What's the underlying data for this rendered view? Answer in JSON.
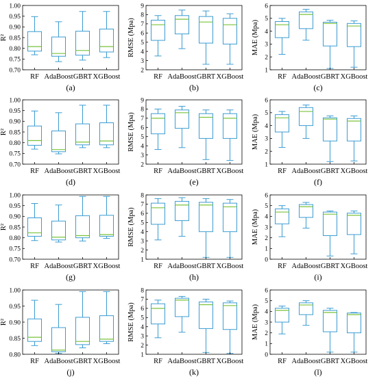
{
  "colors": {
    "box": "#3a9bd1",
    "median": "#79c23a",
    "axis": "#000000"
  },
  "chart_data": [
    {
      "type": "box",
      "panel": "(a)",
      "ylabel": "R²",
      "ylim": [
        0.7,
        1.0
      ],
      "yticks": [
        "0.70",
        "0.75",
        "0.80",
        "0.85",
        "0.90",
        "0.95",
        "1.00"
      ],
      "categories": [
        "RF",
        "AdaBoost",
        "GBRT",
        "XGBoost"
      ],
      "boxes": [
        {
          "min": 0.77,
          "q1": 0.787,
          "median": 0.808,
          "q3": 0.878,
          "max": 0.948
        },
        {
          "min": 0.738,
          "q1": 0.763,
          "median": 0.776,
          "q3": 0.853,
          "max": 0.924
        },
        {
          "min": 0.745,
          "q1": 0.768,
          "median": 0.79,
          "q3": 0.88,
          "max": 0.972
        },
        {
          "min": 0.757,
          "q1": 0.783,
          "median": 0.808,
          "q3": 0.89,
          "max": 0.972
        }
      ]
    },
    {
      "type": "box",
      "panel": "(b)",
      "ylabel": "RMSE (Mpa)",
      "ylim": [
        2,
        9
      ],
      "yticks": [
        "2",
        "3",
        "4",
        "5",
        "6",
        "7",
        "8",
        "9"
      ],
      "categories": [
        "RF",
        "AdaBoost",
        "GBRT",
        "XGBoost"
      ],
      "boxes": [
        {
          "min": 3.5,
          "q1": 5.2,
          "median": 6.9,
          "q3": 7.4,
          "max": 7.9
        },
        {
          "min": 4.3,
          "q1": 5.9,
          "median": 7.5,
          "q3": 7.9,
          "max": 8.5
        },
        {
          "min": 2.6,
          "q1": 4.9,
          "median": 7.2,
          "q3": 7.8,
          "max": 8.4
        },
        {
          "min": 2.6,
          "q1": 4.8,
          "median": 6.9,
          "q3": 7.6,
          "max": 8.1
        }
      ]
    },
    {
      "type": "box",
      "panel": "(c)",
      "ylabel": "MAE (Mpa)",
      "ylim": [
        1,
        6
      ],
      "yticks": [
        "1",
        "2",
        "3",
        "4",
        "5",
        "6"
      ],
      "categories": [
        "RF",
        "AdaBoost",
        "GBRT",
        "XGBoost"
      ],
      "boxes": [
        {
          "min": 2.2,
          "q1": 3.5,
          "median": 4.5,
          "q3": 4.75,
          "max": 5.0
        },
        {
          "min": 3.3,
          "q1": 4.2,
          "median": 5.3,
          "q3": 5.5,
          "max": 5.7
        },
        {
          "min": 1.1,
          "q1": 2.85,
          "median": 4.6,
          "q3": 4.7,
          "max": 4.85
        },
        {
          "min": 1.2,
          "q1": 2.8,
          "median": 4.4,
          "q3": 4.6,
          "max": 4.8
        }
      ]
    },
    {
      "type": "box",
      "panel": "(d)",
      "ylabel": "R²",
      "ylim": [
        0.7,
        1.0
      ],
      "yticks": [
        "0.70",
        "0.75",
        "0.80",
        "0.85",
        "0.90",
        "0.95",
        "1.00"
      ],
      "categories": [
        "RF",
        "AdaBoost",
        "GBRT",
        "XGBoost"
      ],
      "boxes": [
        {
          "min": 0.77,
          "q1": 0.788,
          "median": 0.81,
          "q3": 0.878,
          "max": 0.948
        },
        {
          "min": 0.748,
          "q1": 0.758,
          "median": 0.768,
          "q3": 0.855,
          "max": 0.94
        },
        {
          "min": 0.777,
          "q1": 0.79,
          "median": 0.803,
          "q3": 0.888,
          "max": 0.975
        },
        {
          "min": 0.777,
          "q1": 0.79,
          "median": 0.808,
          "q3": 0.893,
          "max": 0.975
        }
      ]
    },
    {
      "type": "box",
      "panel": "(e)",
      "ylabel": "RMSE (Mpa)",
      "ylim": [
        2,
        9
      ],
      "yticks": [
        "2",
        "3",
        "4",
        "5",
        "6",
        "7",
        "8",
        "9"
      ],
      "categories": [
        "RF",
        "AdaBoost",
        "GBRT",
        "XGBoost"
      ],
      "boxes": [
        {
          "min": 3.6,
          "q1": 5.3,
          "median": 7.0,
          "q3": 7.5,
          "max": 8.0
        },
        {
          "min": 3.8,
          "q1": 5.9,
          "median": 7.6,
          "q3": 7.9,
          "max": 8.3
        },
        {
          "min": 2.5,
          "q1": 4.8,
          "median": 7.1,
          "q3": 7.5,
          "max": 7.9
        },
        {
          "min": 2.4,
          "q1": 4.8,
          "median": 7.0,
          "q3": 7.5,
          "max": 7.9
        }
      ]
    },
    {
      "type": "box",
      "panel": "(f)",
      "ylabel": "MAE (Mpa)",
      "ylim": [
        1,
        6
      ],
      "yticks": [
        "1",
        "2",
        "3",
        "4",
        "5",
        "6"
      ],
      "categories": [
        "RF",
        "AdaBoost",
        "GBRT",
        "XGBoost"
      ],
      "boxes": [
        {
          "min": 2.3,
          "q1": 3.5,
          "median": 4.6,
          "q3": 4.85,
          "max": 5.1
        },
        {
          "min": 3.0,
          "q1": 4.0,
          "median": 5.1,
          "q3": 5.4,
          "max": 5.6
        },
        {
          "min": 1.2,
          "q1": 2.8,
          "median": 4.5,
          "q3": 4.6,
          "max": 4.75
        },
        {
          "min": 1.25,
          "q1": 2.8,
          "median": 4.35,
          "q3": 4.55,
          "max": 4.75
        }
      ]
    },
    {
      "type": "box",
      "panel": "(g)",
      "ylabel": "R²",
      "ylim": [
        0.7,
        1.0
      ],
      "yticks": [
        "0.70",
        "0.75",
        "0.80",
        "0.85",
        "0.90",
        "0.95",
        "1.00"
      ],
      "categories": [
        "RF",
        "AdaBoost",
        "GBRT",
        "XGBoost"
      ],
      "boxes": [
        {
          "min": 0.787,
          "q1": 0.807,
          "median": 0.823,
          "q3": 0.893,
          "max": 0.96
        },
        {
          "min": 0.78,
          "q1": 0.79,
          "median": 0.803,
          "q3": 0.878,
          "max": 0.953
        },
        {
          "min": 0.785,
          "q1": 0.8,
          "median": 0.81,
          "q3": 0.903,
          "max": 0.993
        },
        {
          "min": 0.797,
          "q1": 0.807,
          "median": 0.815,
          "q3": 0.905,
          "max": 0.993
        }
      ]
    },
    {
      "type": "box",
      "panel": "(h)",
      "ylabel": "RMSE (Mpa)",
      "ylim": [
        1,
        8
      ],
      "yticks": [
        "1",
        "2",
        "3",
        "4",
        "5",
        "6",
        "7",
        "8"
      ],
      "categories": [
        "RF",
        "AdaBoost",
        "GBRT",
        "XGBoost"
      ],
      "boxes": [
        {
          "min": 3.1,
          "q1": 4.8,
          "median": 6.6,
          "q3": 7.1,
          "max": 7.6
        },
        {
          "min": 3.5,
          "q1": 5.2,
          "median": 6.9,
          "q3": 7.3,
          "max": 7.7
        },
        {
          "min": 1.2,
          "q1": 4.0,
          "median": 6.9,
          "q3": 7.2,
          "max": 7.6
        },
        {
          "min": 1.2,
          "q1": 4.0,
          "median": 6.7,
          "q3": 7.1,
          "max": 7.5
        }
      ]
    },
    {
      "type": "box",
      "panel": "(i)",
      "ylabel": "MAE (Mpa)",
      "ylim": [
        0,
        6
      ],
      "yticks": [
        "0",
        "1",
        "2",
        "3",
        "4",
        "5",
        "6"
      ],
      "categories": [
        "RF",
        "AdaBoost",
        "GBRT",
        "XGBoost"
      ],
      "boxes": [
        {
          "min": 2.1,
          "q1": 3.3,
          "median": 4.4,
          "q3": 4.7,
          "max": 5.0
        },
        {
          "min": 2.9,
          "q1": 3.9,
          "median": 4.9,
          "q3": 5.1,
          "max": 5.3
        },
        {
          "min": 0.3,
          "q1": 2.2,
          "median": 4.2,
          "q3": 4.4,
          "max": 4.5
        },
        {
          "min": 0.5,
          "q1": 2.3,
          "median": 4.1,
          "q3": 4.3,
          "max": 4.5
        }
      ]
    },
    {
      "type": "box",
      "panel": "(j)",
      "ylabel": "R²",
      "ylim": [
        0.8,
        1.0
      ],
      "yticks": [
        "0.80",
        "0.85",
        "0.90",
        "0.95",
        "1.00"
      ],
      "categories": [
        "RF",
        "AdaBoost",
        "GBRT",
        "XGBoost"
      ],
      "boxes": [
        {
          "min": 0.827,
          "q1": 0.84,
          "median": 0.853,
          "q3": 0.91,
          "max": 0.968
        },
        {
          "min": 0.803,
          "q1": 0.808,
          "median": 0.813,
          "q3": 0.883,
          "max": 0.955
        },
        {
          "min": 0.82,
          "q1": 0.83,
          "median": 0.84,
          "q3": 0.915,
          "max": 0.995
        },
        {
          "min": 0.833,
          "q1": 0.84,
          "median": 0.847,
          "q3": 0.92,
          "max": 0.995
        }
      ]
    },
    {
      "type": "box",
      "panel": "(k)",
      "ylabel": "RMSE (Mpa)",
      "ylim": [
        1,
        8
      ],
      "yticks": [
        "1",
        "2",
        "3",
        "4",
        "5",
        "6",
        "7",
        "8"
      ],
      "categories": [
        "RF",
        "AdaBoost",
        "GBRT",
        "XGBoost"
      ],
      "boxes": [
        {
          "min": 2.8,
          "q1": 4.3,
          "median": 6.0,
          "q3": 6.5,
          "max": 6.9
        },
        {
          "min": 3.4,
          "q1": 5.1,
          "median": 6.9,
          "q3": 7.1,
          "max": 7.3
        },
        {
          "min": 1.2,
          "q1": 3.8,
          "median": 6.4,
          "q3": 6.7,
          "max": 7.0
        },
        {
          "min": 1.1,
          "q1": 3.7,
          "median": 6.3,
          "q3": 6.6,
          "max": 6.8
        }
      ]
    },
    {
      "type": "box",
      "panel": "(l)",
      "ylabel": "MAE (Mpa)",
      "ylim": [
        0,
        6
      ],
      "yticks": [
        "0",
        "1",
        "2",
        "3",
        "4",
        "5",
        "6"
      ],
      "categories": [
        "RF",
        "AdaBoost",
        "GBRT",
        "XGBoost"
      ],
      "boxes": [
        {
          "min": 1.9,
          "q1": 3.0,
          "median": 4.1,
          "q3": 4.3,
          "max": 4.5
        },
        {
          "min": 2.7,
          "q1": 3.7,
          "median": 4.6,
          "q3": 4.8,
          "max": 5.0
        },
        {
          "min": 0.2,
          "q1": 2.1,
          "median": 3.9,
          "q3": 4.1,
          "max": 4.3
        },
        {
          "min": 0.2,
          "q1": 2.0,
          "median": 3.7,
          "q3": 3.85,
          "max": 3.9
        }
      ]
    }
  ]
}
